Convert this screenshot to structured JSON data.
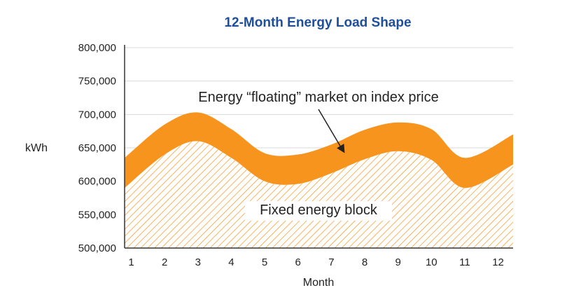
{
  "chart_data": {
    "type": "area",
    "title": "12-Month Energy Load Shape",
    "xlabel": "Month",
    "ylabel": "kWh",
    "x": [
      1,
      2,
      3,
      4,
      5,
      6,
      7,
      8,
      9,
      10,
      11,
      12
    ],
    "ylim": [
      500000,
      800000
    ],
    "yticks": [
      500000,
      550000,
      600000,
      650000,
      700000,
      750000,
      800000
    ],
    "ytick_labels": [
      "500,000",
      "550,000",
      "600,000",
      "650,000",
      "700,000",
      "750,000",
      "800,000"
    ],
    "xtick_labels": [
      "1",
      "2",
      "3",
      "4",
      "5",
      "6",
      "7",
      "8",
      "9",
      "10",
      "11",
      "12"
    ],
    "grid": true,
    "series": [
      {
        "name": "Fixed energy block",
        "x": [
          0.8,
          2,
          3,
          4,
          5,
          6,
          7,
          8,
          9,
          10,
          11,
          12.45
        ],
        "values": [
          590000,
          640000,
          660000,
          635000,
          600000,
          596000,
          612000,
          633000,
          645000,
          632000,
          590000,
          625000
        ],
        "color": "#f7941d",
        "fill": "hatched"
      },
      {
        "name": "Energy “floating” market on index price",
        "x": [
          0.8,
          2,
          3,
          4,
          5,
          6,
          7,
          8,
          9,
          10,
          11,
          12.45
        ],
        "values": [
          635000,
          685000,
          703000,
          678000,
          642000,
          640000,
          655000,
          677000,
          688000,
          678000,
          635000,
          670000
        ],
        "color": "#f7941d",
        "fill": "solid"
      }
    ],
    "annotations": [
      {
        "text": "Energy “floating” market on index price",
        "arrow_to_month": 7.4
      },
      {
        "text": "Fixed energy block"
      }
    ]
  }
}
